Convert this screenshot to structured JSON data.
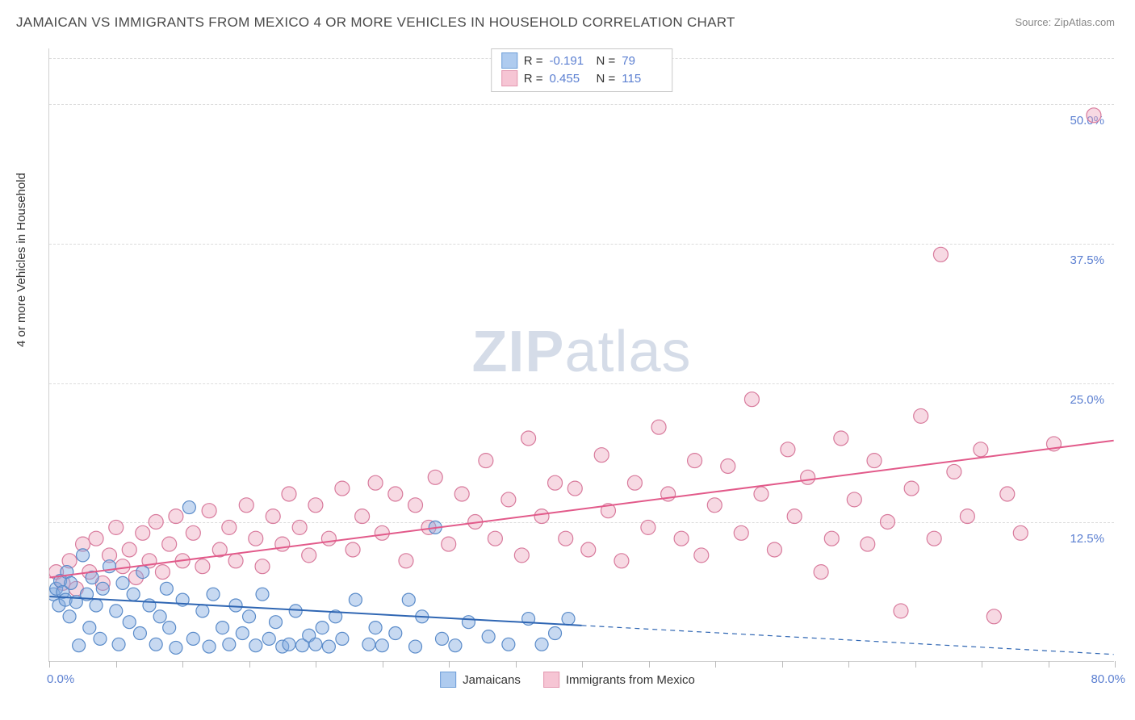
{
  "title": "JAMAICAN VS IMMIGRANTS FROM MEXICO 4 OR MORE VEHICLES IN HOUSEHOLD CORRELATION CHART",
  "source": "Source: ZipAtlas.com",
  "watermark": {
    "zip": "ZIP",
    "atlas": "atlas"
  },
  "y_axis_label": "4 or more Vehicles in Household",
  "y_ticks": [
    {
      "value": 50.0,
      "label": "50.0%"
    },
    {
      "value": 37.5,
      "label": "37.5%"
    },
    {
      "value": 25.0,
      "label": "25.0%"
    },
    {
      "value": 12.5,
      "label": "12.5%"
    }
  ],
  "x_axis": {
    "min_label": "0.0%",
    "max_label": "80.0%",
    "min": 0,
    "max": 80
  },
  "x_tick_positions": [
    0,
    5,
    10,
    15,
    20,
    25,
    30,
    35,
    40,
    45,
    50,
    55,
    60,
    65,
    70,
    75,
    80
  ],
  "y_range": {
    "min": 0,
    "max": 55
  },
  "stats": [
    {
      "r_label": "R =",
      "r": "-0.191",
      "n_label": "N =",
      "n": "79",
      "fill": "#aecbef",
      "stroke": "#6f9fd8"
    },
    {
      "r_label": "R =",
      "r": "0.455",
      "n_label": "N =",
      "n": "115",
      "fill": "#f6c5d4",
      "stroke": "#e398b0"
    }
  ],
  "legend": [
    {
      "label": "Jamaicans",
      "fill": "#aecbef",
      "stroke": "#6f9fd8"
    },
    {
      "label": "Immigrants from Mexico",
      "fill": "#f6c5d4",
      "stroke": "#e398b0"
    }
  ],
  "series_blue": {
    "color_fill": "rgba(130,170,225,0.45)",
    "color_stroke": "#5a8bc9",
    "marker_r": 8,
    "line_color": "#2f66b3",
    "line_width": 2,
    "line_start": {
      "x": 0,
      "y": 5.8
    },
    "line_solid_end": {
      "x": 40,
      "y": 3.2
    },
    "line_dash_end": {
      "x": 80,
      "y": 0.6
    },
    "points": [
      [
        0.3,
        6.0
      ],
      [
        0.5,
        6.5
      ],
      [
        0.7,
        5.0
      ],
      [
        0.8,
        7.2
      ],
      [
        1.0,
        6.2
      ],
      [
        1.2,
        5.5
      ],
      [
        1.3,
        8.0
      ],
      [
        1.5,
        4.0
      ],
      [
        1.6,
        7.0
      ],
      [
        2.0,
        5.3
      ],
      [
        2.2,
        1.4
      ],
      [
        2.5,
        9.5
      ],
      [
        2.8,
        6.0
      ],
      [
        3.0,
        3.0
      ],
      [
        3.2,
        7.5
      ],
      [
        3.5,
        5.0
      ],
      [
        3.8,
        2.0
      ],
      [
        4.0,
        6.5
      ],
      [
        4.5,
        8.5
      ],
      [
        5.0,
        4.5
      ],
      [
        5.2,
        1.5
      ],
      [
        5.5,
        7.0
      ],
      [
        6.0,
        3.5
      ],
      [
        6.3,
        6.0
      ],
      [
        6.8,
        2.5
      ],
      [
        7.0,
        8.0
      ],
      [
        7.5,
        5.0
      ],
      [
        8.0,
        1.5
      ],
      [
        8.3,
        4.0
      ],
      [
        8.8,
        6.5
      ],
      [
        9.0,
        3.0
      ],
      [
        9.5,
        1.2
      ],
      [
        10.0,
        5.5
      ],
      [
        10.5,
        13.8
      ],
      [
        10.8,
        2.0
      ],
      [
        11.5,
        4.5
      ],
      [
        12.0,
        1.3
      ],
      [
        12.3,
        6.0
      ],
      [
        13.0,
        3.0
      ],
      [
        13.5,
        1.5
      ],
      [
        14.0,
        5.0
      ],
      [
        14.5,
        2.5
      ],
      [
        15.0,
        4.0
      ],
      [
        15.5,
        1.4
      ],
      [
        16.0,
        6.0
      ],
      [
        16.5,
        2.0
      ],
      [
        17.0,
        3.5
      ],
      [
        17.5,
        1.3
      ],
      [
        18.0,
        1.5
      ],
      [
        18.5,
        4.5
      ],
      [
        19.0,
        1.4
      ],
      [
        19.5,
        2.3
      ],
      [
        20.0,
        1.5
      ],
      [
        20.5,
        3.0
      ],
      [
        21.0,
        1.3
      ],
      [
        21.5,
        4.0
      ],
      [
        22.0,
        2.0
      ],
      [
        23.0,
        5.5
      ],
      [
        24.0,
        1.5
      ],
      [
        24.5,
        3.0
      ],
      [
        25.0,
        1.4
      ],
      [
        26.0,
        2.5
      ],
      [
        27.0,
        5.5
      ],
      [
        27.5,
        1.3
      ],
      [
        28.0,
        4.0
      ],
      [
        29.0,
        12.0
      ],
      [
        29.5,
        2.0
      ],
      [
        30.5,
        1.4
      ],
      [
        31.5,
        3.5
      ],
      [
        33.0,
        2.2
      ],
      [
        34.5,
        1.5
      ],
      [
        36.0,
        3.8
      ],
      [
        37.0,
        1.5
      ],
      [
        38.0,
        2.5
      ],
      [
        39.0,
        3.8
      ]
    ]
  },
  "series_pink": {
    "color_fill": "rgba(235,160,185,0.4)",
    "color_stroke": "#d87a9c",
    "marker_r": 9,
    "line_color": "#e25a8a",
    "line_width": 2,
    "line_start": {
      "x": 0,
      "y": 7.5
    },
    "line_end": {
      "x": 80,
      "y": 19.8
    },
    "points": [
      [
        0.5,
        8.0
      ],
      [
        1.0,
        7.0
      ],
      [
        1.5,
        9.0
      ],
      [
        2.0,
        6.5
      ],
      [
        2.5,
        10.5
      ],
      [
        3.0,
        8.0
      ],
      [
        3.5,
        11.0
      ],
      [
        4.0,
        7.0
      ],
      [
        4.5,
        9.5
      ],
      [
        5.0,
        12.0
      ],
      [
        5.5,
        8.5
      ],
      [
        6.0,
        10.0
      ],
      [
        6.5,
        7.5
      ],
      [
        7.0,
        11.5
      ],
      [
        7.5,
        9.0
      ],
      [
        8.0,
        12.5
      ],
      [
        8.5,
        8.0
      ],
      [
        9.0,
        10.5
      ],
      [
        9.5,
        13.0
      ],
      [
        10.0,
        9.0
      ],
      [
        10.8,
        11.5
      ],
      [
        11.5,
        8.5
      ],
      [
        12.0,
        13.5
      ],
      [
        12.8,
        10.0
      ],
      [
        13.5,
        12.0
      ],
      [
        14.0,
        9.0
      ],
      [
        14.8,
        14.0
      ],
      [
        15.5,
        11.0
      ],
      [
        16.0,
        8.5
      ],
      [
        16.8,
        13.0
      ],
      [
        17.5,
        10.5
      ],
      [
        18.0,
        15.0
      ],
      [
        18.8,
        12.0
      ],
      [
        19.5,
        9.5
      ],
      [
        20.0,
        14.0
      ],
      [
        21.0,
        11.0
      ],
      [
        22.0,
        15.5
      ],
      [
        22.8,
        10.0
      ],
      [
        23.5,
        13.0
      ],
      [
        24.5,
        16.0
      ],
      [
        25.0,
        11.5
      ],
      [
        26.0,
        15.0
      ],
      [
        26.8,
        9.0
      ],
      [
        27.5,
        14.0
      ],
      [
        28.5,
        12.0
      ],
      [
        29.0,
        16.5
      ],
      [
        30.0,
        10.5
      ],
      [
        31.0,
        15.0
      ],
      [
        32.0,
        12.5
      ],
      [
        32.8,
        18.0
      ],
      [
        33.5,
        11.0
      ],
      [
        34.5,
        14.5
      ],
      [
        35.5,
        9.5
      ],
      [
        36.0,
        20.0
      ],
      [
        37.0,
        13.0
      ],
      [
        38.0,
        16.0
      ],
      [
        38.8,
        11.0
      ],
      [
        39.5,
        15.5
      ],
      [
        40.5,
        10.0
      ],
      [
        41.5,
        18.5
      ],
      [
        42.0,
        13.5
      ],
      [
        43.0,
        9.0
      ],
      [
        44.0,
        16.0
      ],
      [
        45.0,
        12.0
      ],
      [
        45.8,
        21.0
      ],
      [
        46.5,
        15.0
      ],
      [
        47.5,
        11.0
      ],
      [
        48.5,
        18.0
      ],
      [
        49.0,
        9.5
      ],
      [
        50.0,
        14.0
      ],
      [
        51.0,
        17.5
      ],
      [
        52.0,
        11.5
      ],
      [
        52.8,
        23.5
      ],
      [
        53.5,
        15.0
      ],
      [
        54.5,
        10.0
      ],
      [
        55.5,
        19.0
      ],
      [
        56.0,
        13.0
      ],
      [
        57.0,
        16.5
      ],
      [
        58.0,
        8.0
      ],
      [
        58.8,
        11.0
      ],
      [
        59.5,
        20.0
      ],
      [
        60.5,
        14.5
      ],
      [
        61.5,
        10.5
      ],
      [
        62.0,
        18.0
      ],
      [
        63.0,
        12.5
      ],
      [
        64.0,
        4.5
      ],
      [
        64.8,
        15.5
      ],
      [
        65.5,
        22.0
      ],
      [
        66.5,
        11.0
      ],
      [
        67.0,
        36.5
      ],
      [
        68.0,
        17.0
      ],
      [
        69.0,
        13.0
      ],
      [
        70.0,
        19.0
      ],
      [
        71.0,
        4.0
      ],
      [
        72.0,
        15.0
      ],
      [
        73.0,
        11.5
      ],
      [
        75.5,
        19.5
      ],
      [
        78.5,
        49.0
      ]
    ]
  }
}
